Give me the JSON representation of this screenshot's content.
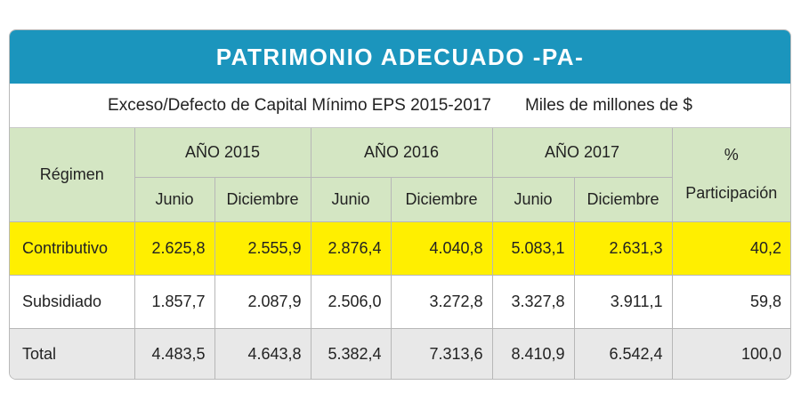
{
  "title": "PATRIMONIO ADECUADO -PA-",
  "subtitle": "Exceso/Defecto de Capital Mínimo  EPS 2015-2017",
  "units": "Miles de millones de $",
  "chart_data": {
    "type": "table",
    "header": {
      "regimen": "Régimen",
      "years": [
        "AÑO 2015",
        "AÑO 2016",
        "AÑO 2017"
      ],
      "periods": [
        "Junio",
        "Diciembre",
        "Junio",
        "Diciembre",
        "Junio",
        "Diciembre"
      ],
      "pct_symbol": "%",
      "pct_label": "Participación"
    },
    "rows": [
      {
        "label": "Contributivo",
        "values": [
          "2.625,8",
          "2.555,9",
          "2.876,4",
          "4.040,8",
          "5.083,1",
          "2.631,3"
        ],
        "pct": "40,2"
      },
      {
        "label": "Subsidiado",
        "values": [
          "1.857,7",
          "2.087,9",
          "2.506,0",
          "3.272,8",
          "3.327,8",
          "3.911,1"
        ],
        "pct": "59,8"
      },
      {
        "label": "Total",
        "values": [
          "4.483,5",
          "4.643,8",
          "5.382,4",
          "7.313,6",
          "8.410,9",
          "6.542,4"
        ],
        "pct": "100,0"
      }
    ],
    "colors": {
      "title_bar": "#1b95bd",
      "header_bg": "#d4e6c3",
      "highlight_row": "#ffef00",
      "total_row": "#e8e8e8"
    }
  }
}
